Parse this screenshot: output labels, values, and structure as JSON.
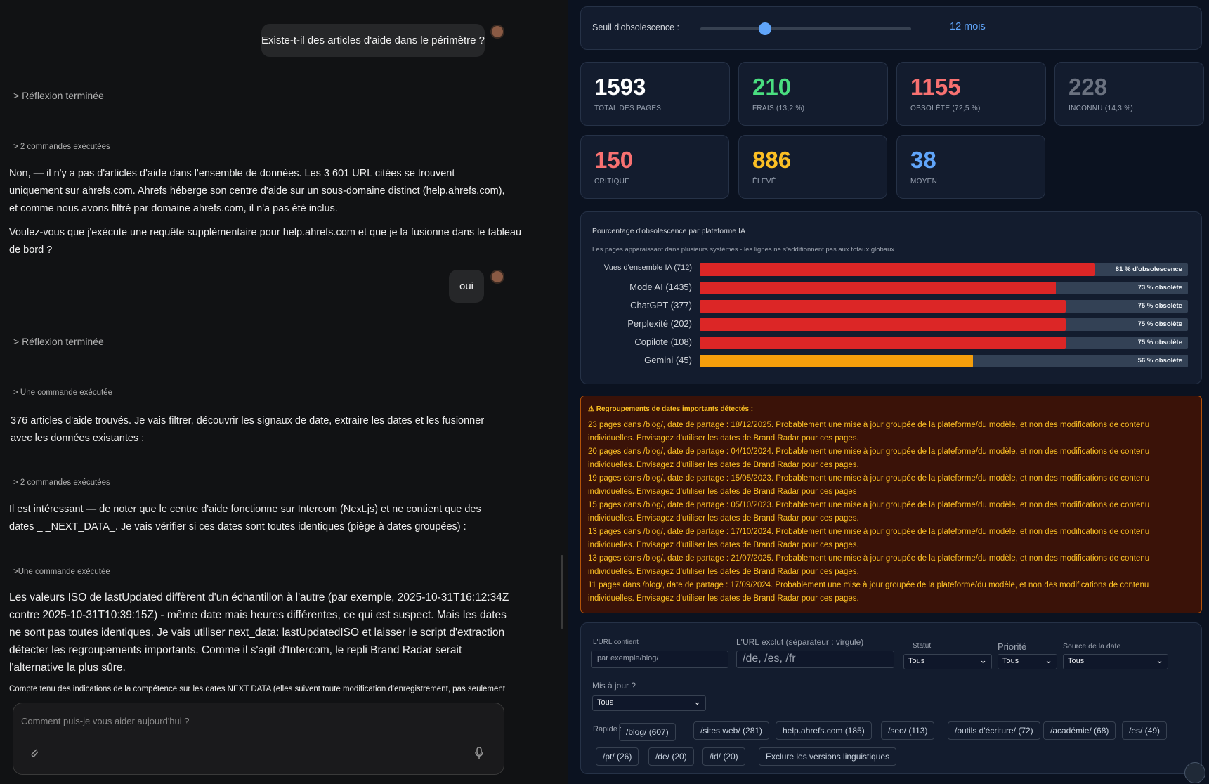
{
  "chat": {
    "messages": [
      "Existe-t-il des articles d'aide dans le périmètre ?",
      "oui"
    ],
    "steps": [
      "> Réflexion terminée",
      "> 2 commandes exécutées",
      "> Réflexion terminée",
      "> Une commande exécutée",
      "> 2 commandes exécutées",
      ">Une commande exécutée"
    ],
    "paragraphs": [
      "Non, — il n'y a pas d'articles d'aide dans l'ensemble de données. Les 3 601 URL citées se trouvent uniquement sur ahrefs.com. Ahrefs héberge son centre d'aide sur un sous-domaine distinct (help.ahrefs.com), et comme nous avons filtré par domaine ahrefs.com, il n'a pas été inclus.",
      "Voulez-vous que j'exécute une requête supplémentaire pour help.ahrefs.com et que je la fusionne dans le tableau de bord ?",
      "376 articles d'aide trouvés. Je vais filtrer, découvrir les signaux de date, extraire les dates et les fusionner avec les données existantes :",
      "Il est intéressant — de noter que le centre d'aide fonctionne sur Intercom (Next.js) et ne contient que des dates _ _NEXT_DATA_. Je vais vérifier si ces dates sont toutes identiques (piège à dates groupées) :",
      "Les valeurs ISO de lastUpdated diffèrent d'un échantillon à l'autre (par exemple, 2025-10-31T16:12:34Z contre 2025-10-31T10:39:15Z) - même date mais heures différentes, ce qui est suspect. Mais les dates ne sont pas toutes identiques. Je vais utiliser next_data: lastUpdatedISO et laisser le script d'extraction détecter les regroupements importants. Comme il s'agit d'Intercom, le repli Brand Radar serait l'alternative la plus sûre.",
      "Compte tenu des indications de la compétence sur les dates NEXT DATA (elles suivent toute modification d'enregistrement, pas seulement"
    ],
    "input_placeholder": "Comment puis-je vous aider aujourd'hui ?"
  },
  "slider": {
    "label": "Seuil d'obsolescence :",
    "value_text": "12 mois"
  },
  "kpis": [
    {
      "value": "1593",
      "label": "TOTAL DES PAGES",
      "color": "#ffffff"
    },
    {
      "value": "210",
      "label": "FRAIS (13,2 %)",
      "color": "#4ade80"
    },
    {
      "value": "1155",
      "label": "OBSOLÈTE (72,5 %)",
      "color": "#f87171"
    },
    {
      "value": "228",
      "label": "INCONNU (14,3 %)",
      "color": "#6b7280"
    },
    {
      "value": "150",
      "label": "CRITIQUE",
      "color": "#f87171"
    },
    {
      "value": "886",
      "label": "ÉLEVÉ",
      "color": "#fbbf24"
    },
    {
      "value": "38",
      "label": "MOYEN",
      "color": "#60a5fa"
    }
  ],
  "chart_data": {
    "type": "bar",
    "orientation": "horizontal",
    "title": "Pourcentage d'obsolescence par plateforme IA",
    "subtitle": "Les pages apparaissant dans plusieurs systèmes - les lignes ne s'additionnent pas aux totaux globaux.",
    "categories": [
      "Vues d'ensemble IA (712)",
      "Mode AI (1435)",
      "ChatGPT (377)",
      "Perplexité (202)",
      "Copilote (108)",
      "Gemini (45)"
    ],
    "values": [
      81,
      73,
      75,
      75,
      75,
      56
    ],
    "value_labels": [
      "81 % d'obsolescence",
      "73 % obsolète",
      "75 % obsolète",
      "75 % obsolète",
      "75 % obsolète",
      "56 % obsolète"
    ],
    "colors": [
      "#dc2626",
      "#dc2626",
      "#dc2626",
      "#dc2626",
      "#dc2626",
      "#f59e0b"
    ]
  },
  "warning": {
    "title": "⚠ Regroupements de dates importants détectés :",
    "items": [
      "23 pages dans /blog/, date de partage : 18/12/2025. Probablement une mise à jour groupée de la plateforme/du modèle, et non des modifications de contenu individuelles. Envisagez d'utiliser les dates de Brand Radar pour ces pages.",
      "20 pages dans /blog/, date de partage : 04/10/2024. Probablement une mise à jour groupée de la plateforme/du modèle, et non des modifications de contenu individuelles. Envisagez d'utiliser les dates de Brand Radar pour ces pages.",
      "19 pages dans /blog/, date de partage : 15/05/2023. Probablement une mise à jour groupée de la plateforme/du modèle, et non des modifications de contenu individuelles. Envisagez d'utiliser les dates de Brand Radar pour ces pages",
      "15 pages dans /blog/, date de partage : 05/10/2023. Probablement une mise à jour groupée de la plateforme/du modèle, et non des modifications de contenu individuelles. Envisagez d'utiliser les dates de Brand Radar pour ces pages.",
      "13 pages dans /blog/, date de partage : 17/10/2024. Probablement une mise à jour groupée de la plateforme/du modèle, et non des modifications de contenu individuelles. Envisagez d'utiliser les dates de Brand Radar pour ces pages.",
      "13 pages dans /blog/, date de partage : 21/07/2025. Probablement une mise à jour groupée de la plateforme/du modèle, et non des modifications de contenu individuelles. Envisagez d'utiliser les dates de Brand Radar pour ces pages.",
      "11 pages dans /blog/, date de partage : 17/09/2024. Probablement une mise à jour groupée de la plateforme/du modèle, et non des modifications de contenu individuelles. Envisagez d'utiliser les dates de Brand Radar pour ces pages."
    ]
  },
  "filters": {
    "url_contains": {
      "label": "L'URL contient",
      "placeholder": "par exemple/blog/"
    },
    "url_excludes": {
      "label": "L'URL exclut (séparateur : virgule)",
      "placeholder": "/de, /es, /fr"
    },
    "status": {
      "label": "Statut",
      "value": "Tous"
    },
    "priority": {
      "label": "Priorité",
      "value": "Tous"
    },
    "date_source": {
      "label": "Source de la date",
      "value": "Tous"
    },
    "updated": {
      "label": "Mis à jour ?",
      "value": "Tous"
    },
    "quick_label": "Rapide :",
    "chips": [
      "/blog/ (607)",
      "/sites web/ (281)",
      "help.ahrefs.com (185)",
      "/seo/ (113)",
      "/outils d'écriture/ (72)",
      "/académie/ (68)",
      "/es/ (49)",
      "/pt/ (26)",
      "/de/ (20)",
      "/id/ (20)",
      "Exclure les versions linguistiques"
    ]
  }
}
